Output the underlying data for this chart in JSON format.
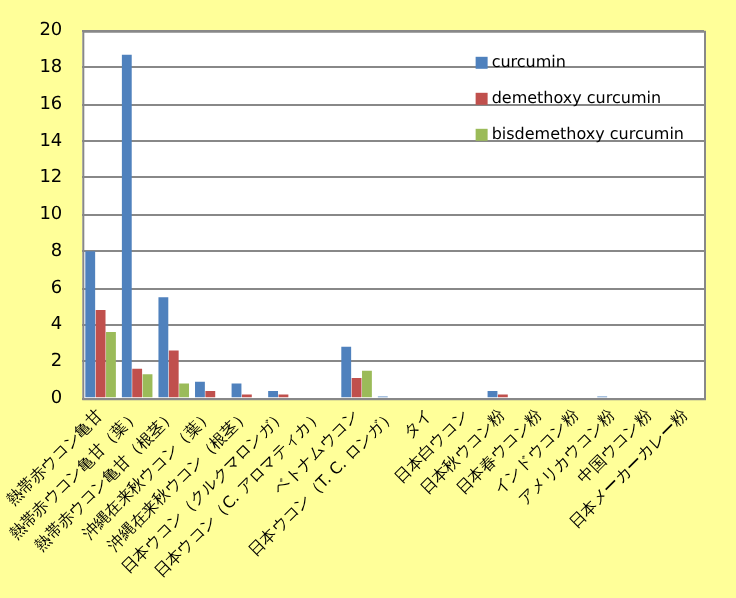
{
  "chart_data": {
    "type": "bar",
    "categories": [
      "熱帯赤ウコン亀甘",
      "熱帯赤ウコン亀甘（葉）",
      "熱帯赤ウコン亀甘（根茎）",
      "沖縄在来秋ウコン（葉）",
      "沖縄在来秋ウコン（根茎）",
      "日本ウコン（クルクマロンガ）",
      "日本ウコン（C. アロマティカ）",
      "ベトナムウコン",
      "日本ウコン（T. C. ロンガ）",
      "タイ",
      "日本白ウコン",
      "日本秋ウコン粉",
      "日本春ウコン粉",
      "インドウコン粉",
      "アメリカウコン粉",
      "中国ウコン粉",
      "日本メーカーカレー粉"
    ],
    "series": [
      {
        "name": "curcumin",
        "color": "#4f81bd",
        "values": [
          8.0,
          18.7,
          5.5,
          0.9,
          0.8,
          0.4,
          0,
          2.8,
          0.1,
          0,
          0,
          0.4,
          0,
          0,
          0.1,
          0,
          0
        ]
      },
      {
        "name": "demethoxy curcumin",
        "color": "#c0504d",
        "values": [
          4.8,
          1.6,
          2.6,
          0.4,
          0.2,
          0.2,
          0,
          1.1,
          0,
          0,
          0,
          0.2,
          0,
          0,
          0,
          0,
          0
        ]
      },
      {
        "name": "bisdemethoxy curcumin",
        "color": "#9bbb59",
        "values": [
          3.6,
          1.3,
          0.8,
          0,
          0,
          0,
          0,
          1.5,
          0,
          0,
          0,
          0,
          0,
          0,
          0,
          0,
          0
        ]
      }
    ],
    "ylim": [
      0,
      20
    ],
    "yticks": [
      0,
      2,
      4,
      6,
      8,
      10,
      12,
      14,
      16,
      18,
      20
    ],
    "grid": "y",
    "legend": "top right"
  }
}
